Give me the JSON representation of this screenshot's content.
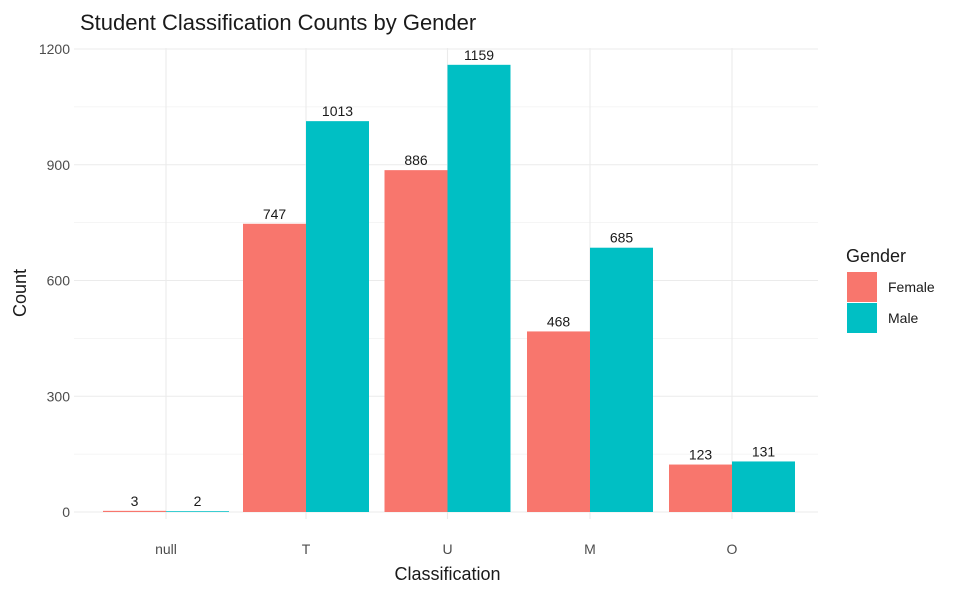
{
  "chart_data": {
    "type": "bar",
    "title": "Student Classification Counts by Gender",
    "xlabel": "Classification",
    "ylabel": "Count",
    "categories": [
      "null",
      "T",
      "U",
      "M",
      "O"
    ],
    "series": [
      {
        "name": "Female",
        "color": "#F8766D",
        "values": [
          3,
          747,
          886,
          468,
          123
        ]
      },
      {
        "name": "Male",
        "color": "#00BFC4",
        "values": [
          2,
          1013,
          1159,
          685,
          131
        ]
      }
    ],
    "ylim": [
      0,
      1200
    ],
    "yticks": [
      0,
      300,
      600,
      900,
      1200
    ],
    "grid": true,
    "legend": {
      "title": "Gender",
      "position": "right"
    }
  }
}
